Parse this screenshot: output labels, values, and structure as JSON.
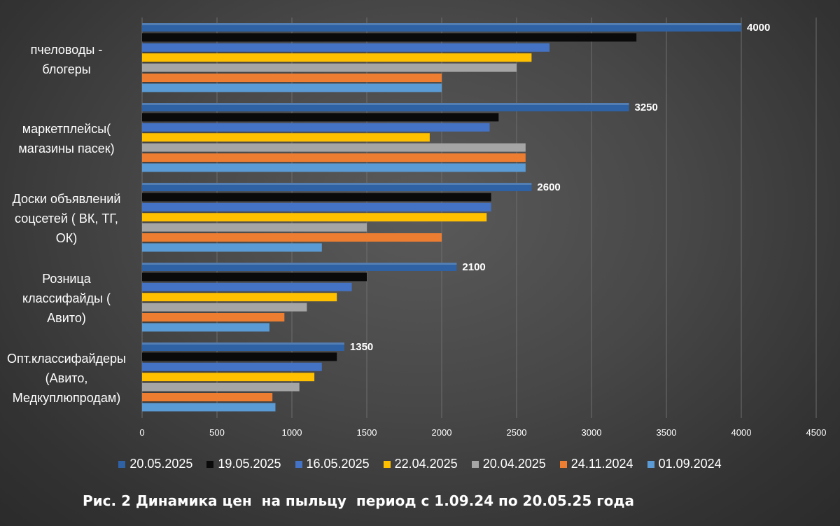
{
  "chart_data": {
    "type": "bar",
    "orientation": "horizontal",
    "categories": [
      "пчеловоды -\nблогеры",
      "маркетплейсы(\nмагазины пасек)",
      "Доски объявлений\nсоцсетей ( ВК, ТГ,\nОК)",
      "Розница\nклассифайды (\nАвито)",
      "Опт.классифайдеры\n(Авито,\nМедкуплюпродам)"
    ],
    "series": [
      {
        "name": "20.05.2025",
        "color": "#2e62a4",
        "values": [
          4000,
          3250,
          2600,
          2100,
          1350
        ]
      },
      {
        "name": "19.05.2025",
        "color": "#0a0a0a",
        "values": [
          3300,
          2380,
          2330,
          1500,
          1300
        ]
      },
      {
        "name": "16.05.2025",
        "color": "#4472c4",
        "values": [
          2720,
          2320,
          2330,
          1400,
          1200
        ]
      },
      {
        "name": "22.04.2025",
        "color": "#ffc000",
        "values": [
          2600,
          1920,
          2300,
          1300,
          1150
        ]
      },
      {
        "name": "20.04.2025",
        "color": "#a5a5a5",
        "values": [
          2500,
          2560,
          1500,
          1100,
          1050
        ]
      },
      {
        "name": "24.11.2024",
        "color": "#ed7d31",
        "values": [
          2000,
          2560,
          2000,
          950,
          870
        ]
      },
      {
        "name": "01.09.2024",
        "color": "#5b9bd5",
        "values": [
          2000,
          2560,
          1200,
          850,
          890
        ]
      }
    ],
    "data_labels": [
      "4000",
      "3250",
      "2600",
      "2100",
      "1350"
    ],
    "xlim": [
      0,
      4500
    ],
    "xticks": [
      0,
      500,
      1000,
      1500,
      2000,
      2500,
      3000,
      3500,
      4000,
      4500
    ],
    "grid": true,
    "legend_position": "bottom",
    "title": "",
    "xlabel": "",
    "ylabel": ""
  },
  "caption": "Рис. 2 Динамика цен  на пыльцу  период с 1.09.24 по 20.05.25 года"
}
